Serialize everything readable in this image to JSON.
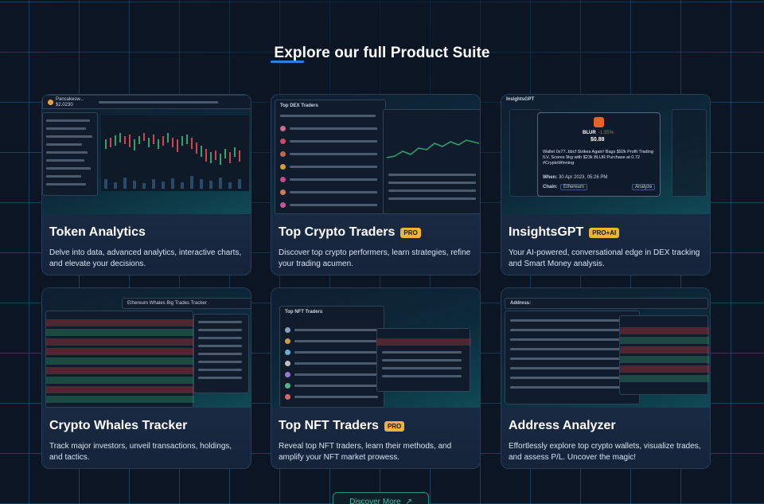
{
  "heading": "Explore our full Product Suite",
  "cards": [
    {
      "title": "Token Analytics",
      "badge": "",
      "description": "Delve into data, advanced analytics, interactive charts, and elevate your decisions.",
      "preview": {
        "token_label": "Pancakesw...",
        "price": "$2.0230"
      }
    },
    {
      "title": "Top Crypto Traders",
      "badge": "PRO",
      "description": "Discover top crypto performers, learn strategies, refine your trading acumen.",
      "preview": {
        "panel_title": "Top DEX Traders"
      }
    },
    {
      "title": "InsightsGPT",
      "badge": "PRO+AI",
      "description": "Your AI-powered, conversational edge in DEX tracking and Smart Money analysis.",
      "preview": {
        "app_label": "InsightsGPT",
        "token": "BLUR",
        "change": "-1.55%",
        "price": "$0.88",
        "message": "Wallet 0x77..bbcf Strikes Again! Bags $92k Profit Trading ILV, Scores 9kg with $23k BLUR Purchase at 0.72 #CryptoWinning",
        "when_label": "When:",
        "when_value": "30 Apr 2023, 05:26 PM",
        "chain_label": "Chain:",
        "chain_value": "Ethereum",
        "analyze_label": "Analyze"
      }
    },
    {
      "title": "Crypto Whales Tracker",
      "badge": "",
      "description": "Track major investors, unveil transactions, holdings, and tactics.",
      "preview": {
        "panel_title": "Ethereum Whales Big Trades Tracker"
      }
    },
    {
      "title": "Top NFT Traders",
      "badge": "PRO",
      "description": "Reveal top NFT traders, learn their methods, and amplify your NFT market prowess.",
      "preview": {
        "panel_title": "Top NFT Traders"
      }
    },
    {
      "title": "Address Analyzer",
      "badge": "",
      "description": "Effortlessly explore top crypto wallets, visualize trades, and assess P/L. Uncover the magic!",
      "preview": {
        "panel_title": "Address:"
      }
    }
  ],
  "cta": {
    "label": "Discover More",
    "icon": "arrow-up-right-icon"
  },
  "colors": {
    "background": "#0b1524",
    "grid": "#38aae6",
    "badge": "#e8b53a",
    "cta": "#3ec4a0"
  }
}
